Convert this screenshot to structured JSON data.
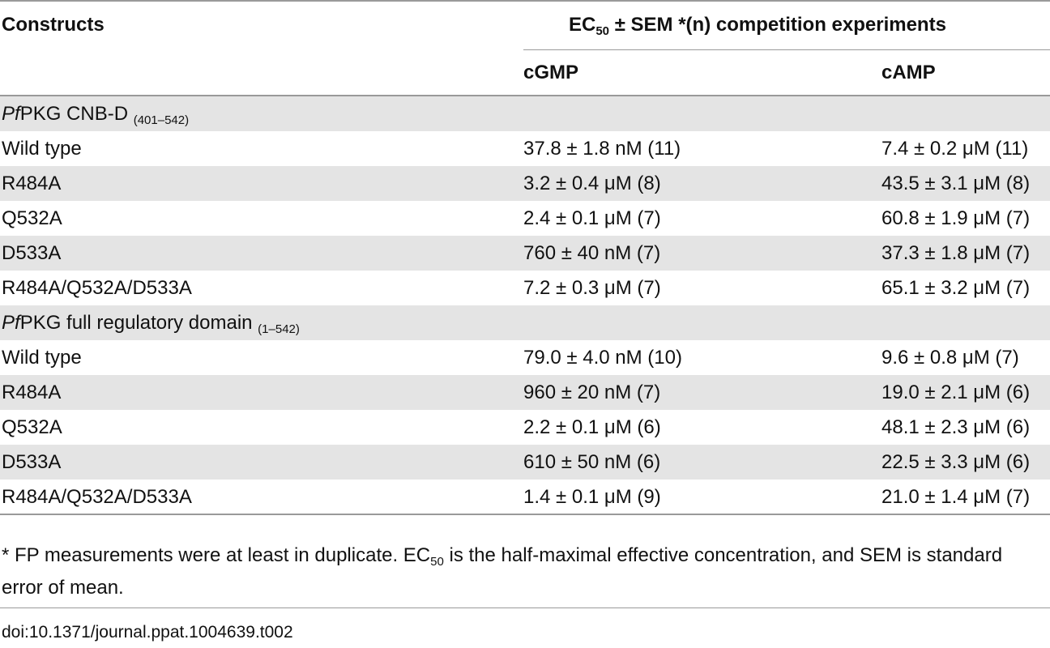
{
  "header": {
    "constructs": "Constructs",
    "ec_prefix": "EC",
    "ec_sub": "50",
    "ec_suffix": " ± SEM *(n) competition experiments",
    "cgmp": "cGMP",
    "camp": "cAMP"
  },
  "sections": [
    {
      "title_italic": "Pf",
      "title_rest": "PKG CNB-D ",
      "title_sub": "(401–542)",
      "rows": [
        {
          "construct": "Wild type",
          "cgmp": "37.8 ± 1.8 nM (11)",
          "camp": "7.4 ± 0.2 μM (11)"
        },
        {
          "construct": "R484A",
          "cgmp": "3.2 ± 0.4 μM (8)",
          "camp": "43.5 ± 3.1 μM (8)"
        },
        {
          "construct": "Q532A",
          "cgmp": "2.4 ± 0.1 μM (7)",
          "camp": "60.8 ± 1.9 μM (7)"
        },
        {
          "construct": "D533A",
          "cgmp": "760 ± 40 nM (7)",
          "camp": "37.3 ± 1.8 μM (7)"
        },
        {
          "construct": "R484A/Q532A/D533A",
          "cgmp": "7.2 ± 0.3 μM (7)",
          "camp": "65.1 ± 3.2 μM (7)"
        }
      ]
    },
    {
      "title_italic": "Pf",
      "title_rest": "PKG full regulatory domain ",
      "title_sub": "(1–542)",
      "rows": [
        {
          "construct": "Wild type",
          "cgmp": "79.0 ± 4.0 nM (10)",
          "camp": "9.6 ± 0.8 μM (7)"
        },
        {
          "construct": "R484A",
          "cgmp": "960 ± 20 nM (7)",
          "camp": "19.0 ± 2.1 μM (6)"
        },
        {
          "construct": "Q532A",
          "cgmp": "2.2 ± 0.1 μM (6)",
          "camp": "48.1 ± 2.3 μM (6)"
        },
        {
          "construct": "D533A",
          "cgmp": "610 ± 50 nM (6)",
          "camp": "22.5 ± 3.3 μM (6)"
        },
        {
          "construct": "R484A/Q532A/D533A",
          "cgmp": "1.4 ± 0.1 μM (9)",
          "camp": "21.0 ± 1.4 μM (7)"
        }
      ]
    }
  ],
  "footnote": {
    "part1": "* FP measurements were at least in duplicate. EC",
    "sub": "50",
    "part2": " is the half-maximal effective concentration, and SEM is standard error of mean."
  },
  "doi": "doi:10.1371/journal.ppat.1004639.t002"
}
